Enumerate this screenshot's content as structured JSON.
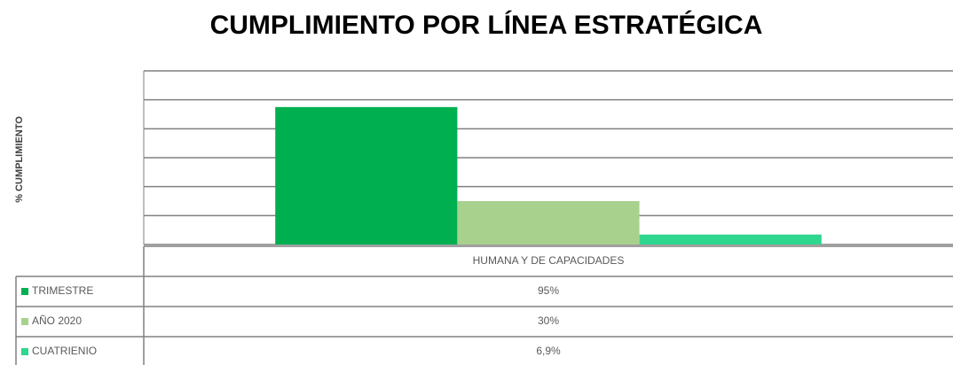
{
  "chart_data": {
    "type": "bar",
    "title": "CUMPLIMIENTO POR LÍNEA ESTRATÉGICA",
    "y_label": "% CUMPLIMIENTO",
    "categories": [
      "HUMANA Y DE CAPACIDADES"
    ],
    "series": [
      {
        "name": "TRIMESTRE",
        "color": "#00b050",
        "values": [
          95
        ],
        "value_labels": [
          "95%"
        ]
      },
      {
        "name": "AÑO 2020",
        "color": "#a9d18e",
        "values": [
          30
        ],
        "value_labels": [
          "30%"
        ]
      },
      {
        "name": "CUATRIENIO",
        "color": "#2fd68e",
        "values": [
          6.9
        ],
        "value_labels": [
          "6,9%"
        ]
      }
    ],
    "ylim": [
      0,
      120
    ],
    "yticks": [
      0,
      20,
      40,
      60,
      80,
      100,
      120
    ],
    "grid": true
  }
}
